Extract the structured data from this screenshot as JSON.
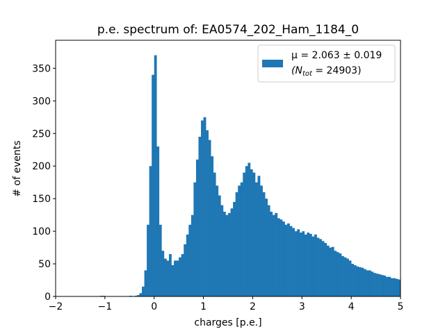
{
  "chart_data": {
    "type": "histogram",
    "title": "p.e. spectrum of: EA0574_202_Ham_1184_0",
    "x_label": "charges [p.e.]",
    "y_label": "# of events",
    "color": "#1f77b4",
    "series_name": "μ = 2.063 ± 0.019",
    "legend_note": {
      "prefix": "(N",
      "sub": "tot",
      "suffix": " = 24903)"
    },
    "legend_position": "upper right",
    "xlim": [
      -2,
      5
    ],
    "ylim": [
      0,
      393
    ],
    "xticks": [
      {
        "value": -2,
        "label": "−2"
      },
      {
        "value": -1,
        "label": "−1"
      },
      0,
      1,
      2,
      3,
      4,
      5
    ],
    "yticks": [
      0,
      50,
      100,
      150,
      200,
      250,
      300,
      350
    ],
    "bins": [
      -2,
      -1.95,
      -1.9,
      -1.85,
      -1.8,
      -1.75,
      -1.7,
      -1.65,
      -1.6,
      -1.55,
      -1.5,
      -1.45,
      -1.4,
      -1.35,
      -1.3,
      -1.25,
      -1.2,
      -1.15,
      -1.1,
      -1.05,
      -1,
      -0.95,
      -0.9,
      -0.85,
      -0.8,
      -0.75,
      -0.7,
      -0.65,
      -0.6,
      -0.55,
      -0.5,
      -0.45,
      -0.4,
      -0.35,
      -0.3,
      -0.25,
      -0.2,
      -0.15,
      -0.1,
      -0.05,
      0,
      0.05,
      0.1,
      0.15,
      0.2,
      0.25,
      0.3,
      0.35,
      0.4,
      0.45,
      0.5,
      0.55,
      0.6,
      0.65,
      0.7,
      0.75,
      0.8,
      0.85,
      0.9,
      0.95,
      1,
      1.05,
      1.1,
      1.15,
      1.2,
      1.25,
      1.3,
      1.35,
      1.4,
      1.45,
      1.5,
      1.55,
      1.6,
      1.65,
      1.7,
      1.75,
      1.8,
      1.85,
      1.9,
      1.95,
      2,
      2.05,
      2.1,
      2.15,
      2.2,
      2.25,
      2.3,
      2.35,
      2.4,
      2.45,
      2.5,
      2.55,
      2.6,
      2.65,
      2.7,
      2.75,
      2.8,
      2.85,
      2.9,
      2.95,
      3,
      3.05,
      3.1,
      3.15,
      3.2,
      3.25,
      3.3,
      3.35,
      3.4,
      3.45,
      3.5,
      3.55,
      3.6,
      3.65,
      3.7,
      3.75,
      3.8,
      3.85,
      3.9,
      3.95,
      4,
      4.05,
      4.1,
      4.15,
      4.2,
      4.25,
      4.3,
      4.35,
      4.4,
      4.45,
      4.5,
      4.55,
      4.6,
      4.65,
      4.7,
      4.75,
      4.8,
      4.85,
      4.9,
      4.95,
      5
    ],
    "values": [
      0,
      0,
      0,
      0,
      0,
      0,
      0,
      0,
      0,
      0,
      0,
      0,
      0,
      0,
      0,
      0,
      0,
      0,
      1,
      1,
      0,
      0,
      0,
      0,
      0,
      0,
      0,
      0,
      0,
      0,
      1,
      0,
      1,
      2,
      5,
      15,
      40,
      110,
      200,
      340,
      370,
      230,
      110,
      70,
      58,
      55,
      65,
      48,
      55,
      55,
      60,
      65,
      80,
      95,
      110,
      125,
      175,
      210,
      245,
      270,
      275,
      255,
      240,
      215,
      190,
      170,
      155,
      140,
      130,
      125,
      128,
      135,
      145,
      160,
      170,
      175,
      190,
      200,
      205,
      195,
      190,
      175,
      185,
      170,
      160,
      150,
      140,
      130,
      125,
      128,
      120,
      118,
      115,
      110,
      112,
      108,
      105,
      100,
      103,
      98,
      100,
      95,
      98,
      96,
      92,
      95,
      90,
      88,
      85,
      82,
      78,
      75,
      76,
      70,
      68,
      66,
      62,
      60,
      58,
      55,
      50,
      48,
      46,
      45,
      44,
      42,
      40,
      40,
      38,
      36,
      35,
      34,
      33,
      32,
      30,
      30,
      28,
      28,
      27,
      26
    ]
  }
}
